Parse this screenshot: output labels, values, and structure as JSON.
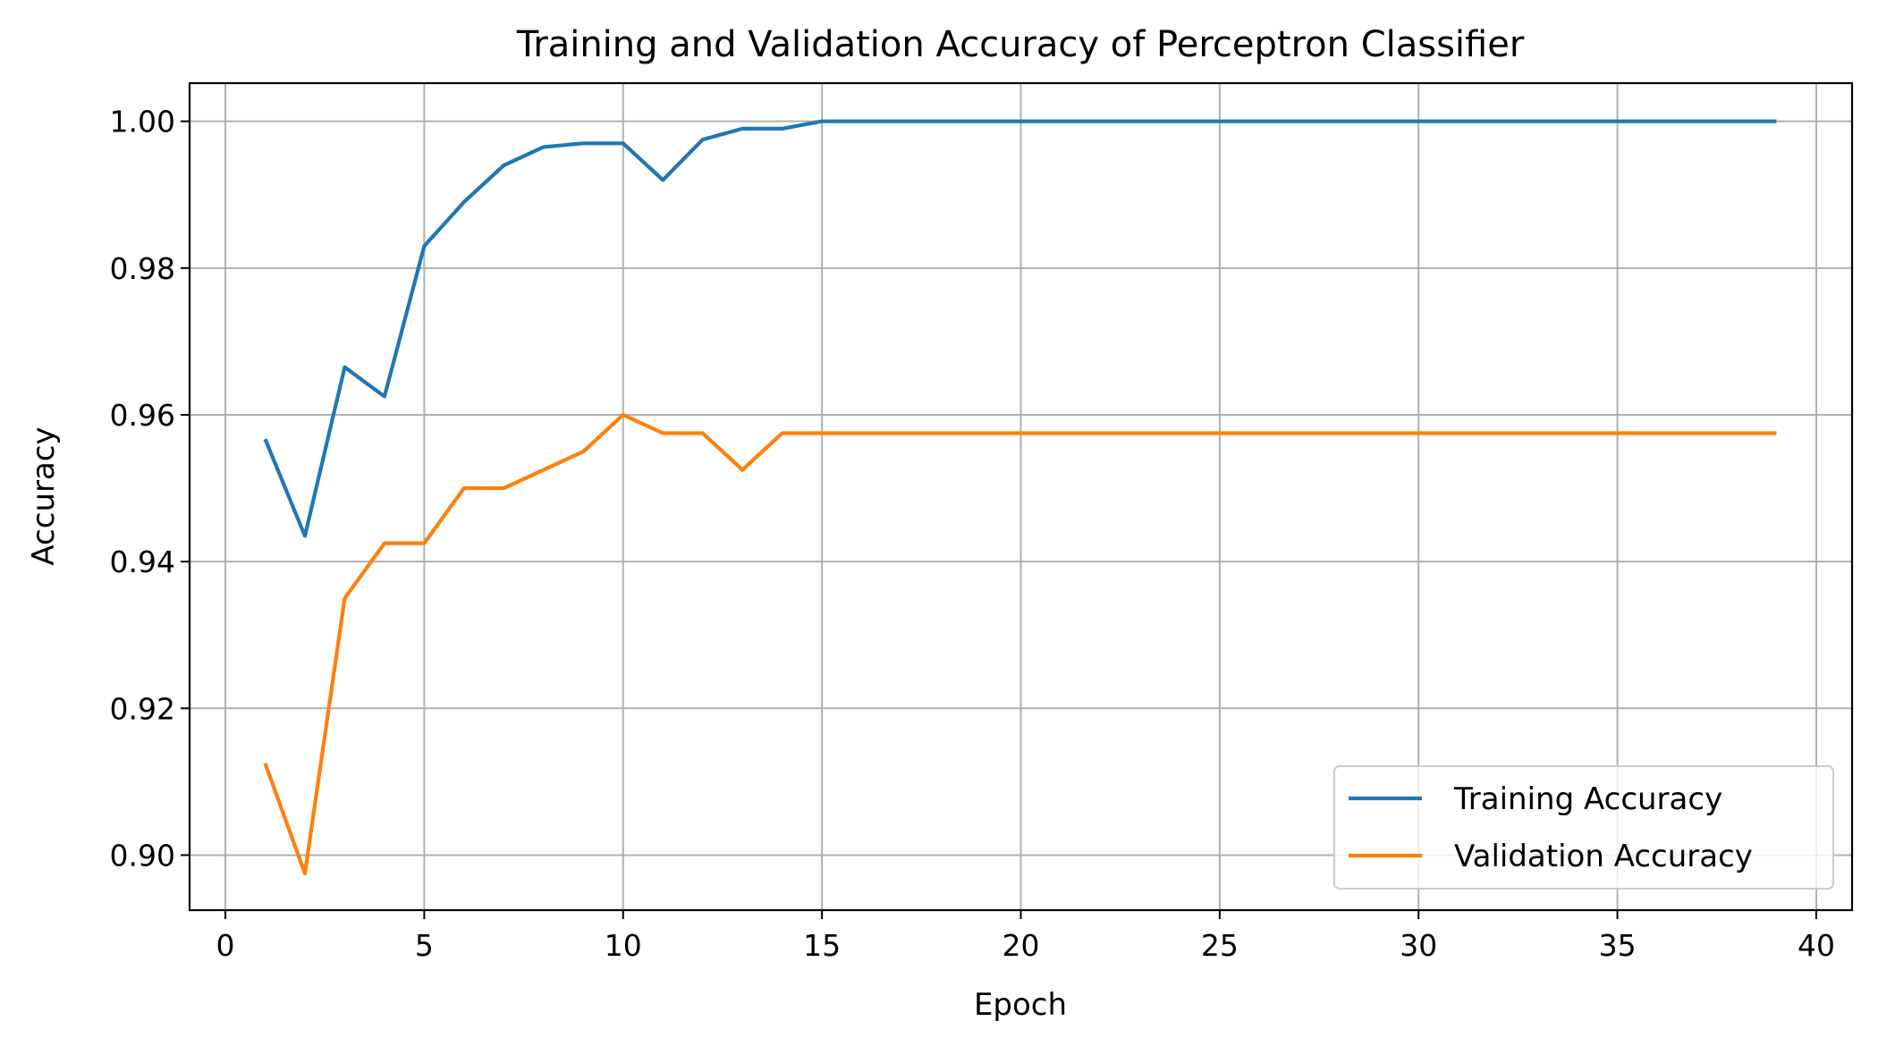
{
  "chart_data": {
    "type": "line",
    "title": "Training and Validation Accuracy of Perceptron Classifier",
    "xlabel": "Epoch",
    "ylabel": "Accuracy",
    "xlim": [
      -0.9,
      40.9
    ],
    "ylim": [
      0.8925,
      1.0052
    ],
    "xticks": [
      0,
      5,
      10,
      15,
      20,
      25,
      30,
      35,
      40
    ],
    "xtick_labels": [
      "0",
      "5",
      "10",
      "15",
      "20",
      "25",
      "30",
      "35",
      "40"
    ],
    "yticks": [
      0.9,
      0.92,
      0.94,
      0.96,
      0.98,
      1.0
    ],
    "ytick_labels": [
      "0.90",
      "0.92",
      "0.94",
      "0.96",
      "0.98",
      "1.00"
    ],
    "grid": true,
    "legend_position": "lower-right",
    "x": [
      1,
      2,
      3,
      4,
      5,
      6,
      7,
      8,
      9,
      10,
      11,
      12,
      13,
      14,
      15,
      16,
      17,
      18,
      19,
      20,
      21,
      22,
      23,
      24,
      25,
      26,
      27,
      28,
      29,
      30,
      31,
      32,
      33,
      34,
      35,
      36,
      37,
      38,
      39
    ],
    "series": [
      {
        "name": "Training Accuracy",
        "color": "#1f77b4",
        "values": [
          0.9567,
          0.9435,
          0.9665,
          0.9625,
          0.983,
          0.989,
          0.994,
          0.9965,
          0.997,
          0.997,
          0.992,
          0.9975,
          0.999,
          0.999,
          1.0,
          1.0,
          1.0,
          1.0,
          1.0,
          1.0,
          1.0,
          1.0,
          1.0,
          1.0,
          1.0,
          1.0,
          1.0,
          1.0,
          1.0,
          1.0,
          1.0,
          1.0,
          1.0,
          1.0,
          1.0,
          1.0,
          1.0,
          1.0,
          1.0
        ]
      },
      {
        "name": "Validation Accuracy",
        "color": "#ff7f0e",
        "values": [
          0.9125,
          0.8975,
          0.935,
          0.9425,
          0.9425,
          0.95,
          0.95,
          0.9525,
          0.955,
          0.96,
          0.9575,
          0.9575,
          0.9525,
          0.9575,
          0.9575,
          0.9575,
          0.9575,
          0.9575,
          0.9575,
          0.9575,
          0.9575,
          0.9575,
          0.9575,
          0.9575,
          0.9575,
          0.9575,
          0.9575,
          0.9575,
          0.9575,
          0.9575,
          0.9575,
          0.9575,
          0.9575,
          0.9575,
          0.9575,
          0.9575,
          0.9575,
          0.9575,
          0.9575
        ]
      }
    ]
  }
}
